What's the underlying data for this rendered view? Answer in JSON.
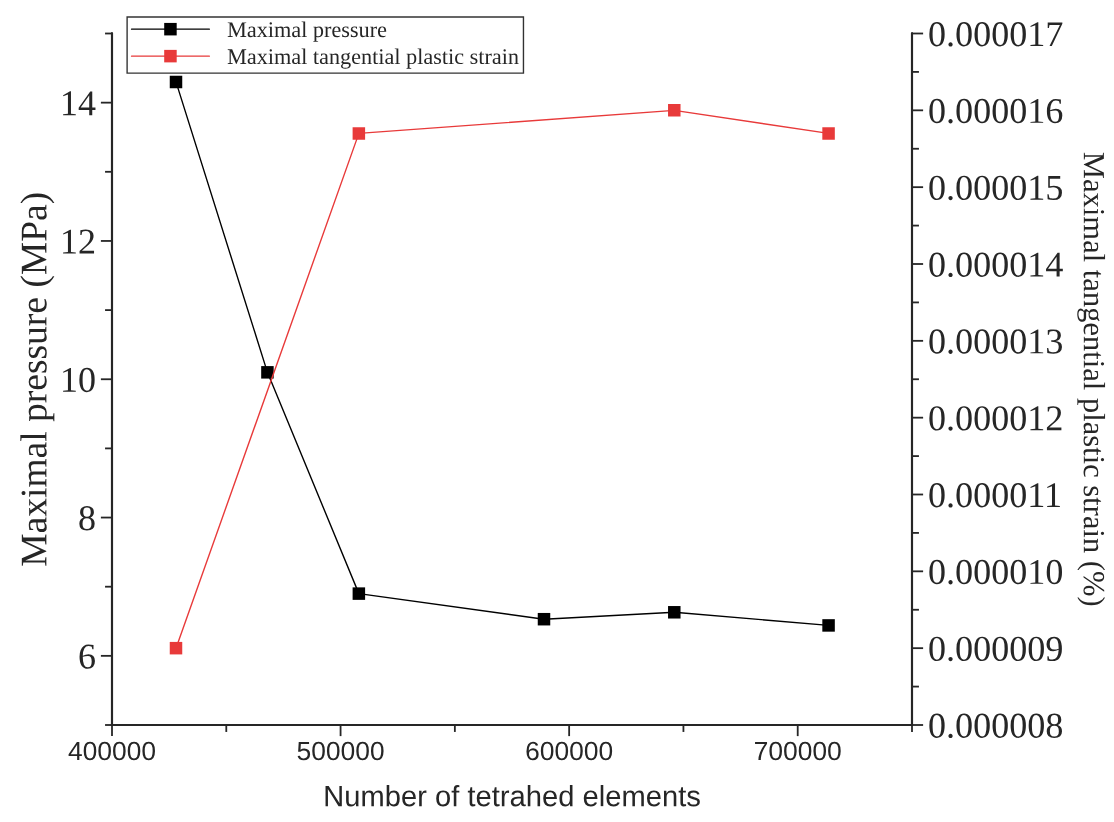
{
  "chart_data": {
    "type": "line",
    "xlabel": "Number of tetrahed elements",
    "ylabel": "Maximal pressure (MPa)",
    "y2label": "Maximal tangential plastic strain (%)",
    "x": [
      428000,
      468000,
      508000,
      589000,
      646000,
      713500
    ],
    "series": [
      {
        "name": "Maximal pressure",
        "color": "#000000",
        "values": [
          14.3,
          10.1,
          6.9,
          6.53,
          6.63,
          6.44
        ]
      },
      {
        "name": "Maximal tangential plastic strain",
        "color": "#e83a3a",
        "axis": "y2",
        "values": [
          9e-06,
          null,
          1.57e-05,
          null,
          1.6e-05,
          1.57e-05
        ]
      }
    ],
    "xlim": [
      400000,
      750000
    ],
    "xticks": [
      400000,
      500000,
      600000,
      700000
    ],
    "ylim": [
      5,
      15
    ],
    "yticks": [
      6,
      8,
      10,
      12,
      14
    ],
    "y2lim": [
      8e-06,
      1.7e-05
    ],
    "y2ticks": [
      {
        "value": 8e-06,
        "label": "0.000008"
      },
      {
        "value": 9e-06,
        "label": "0.000009"
      },
      {
        "value": 1e-05,
        "label": "0.000010"
      },
      {
        "value": 1.1e-05,
        "label": "0.000011"
      },
      {
        "value": 1.2e-05,
        "label": "0.000012"
      },
      {
        "value": 1.3e-05,
        "label": "0.000013"
      },
      {
        "value": 1.4e-05,
        "label": "0.000014"
      },
      {
        "value": 1.5e-05,
        "label": "0.000015"
      },
      {
        "value": 1.6e-05,
        "label": "0.000016"
      },
      {
        "value": 1.7e-05,
        "label": "0.000017"
      }
    ],
    "marker": "square",
    "line_style": "solid",
    "legend": "top left",
    "grid": false
  }
}
